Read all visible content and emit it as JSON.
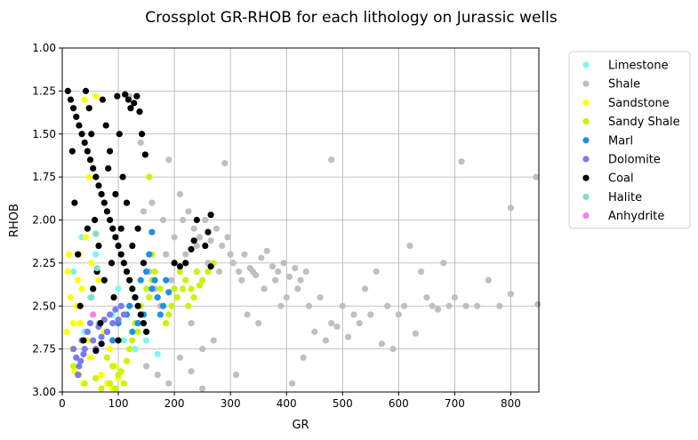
{
  "chart_data": {
    "type": "scatter",
    "title": "Crossplot GR-RHOB for each lithology on Jurassic wells",
    "xlabel": "GR",
    "ylabel": "RHOB",
    "xlim": [
      0,
      850
    ],
    "ylim": [
      3.0,
      1.0
    ],
    "y_inverted": true,
    "xticks": [
      "0",
      "100",
      "200",
      "300",
      "400",
      "500",
      "600",
      "700",
      "800"
    ],
    "yticks": [
      "1.00",
      "1.25",
      "1.50",
      "1.75",
      "2.00",
      "2.25",
      "2.50",
      "2.75",
      "3.00"
    ],
    "grid": true,
    "legend_position": "outside-right",
    "series": [
      {
        "name": "Limestone",
        "color": "#7ef5f5",
        "points": [
          [
            20,
            2.3
          ],
          [
            35,
            2.1
          ],
          [
            50,
            2.45
          ],
          [
            65,
            2.6
          ],
          [
            90,
            2.55
          ],
          [
            110,
            2.7
          ],
          [
            130,
            2.75
          ],
          [
            150,
            2.7
          ],
          [
            170,
            2.78
          ],
          [
            60,
            2.2
          ],
          [
            40,
            2.65
          ],
          [
            100,
            2.4
          ]
        ]
      },
      {
        "name": "Shale",
        "color": "#bfbfbf",
        "points": [
          [
            160,
            1.9
          ],
          [
            180,
            2.0
          ],
          [
            200,
            2.1
          ],
          [
            220,
            2.2
          ],
          [
            240,
            2.15
          ],
          [
            260,
            2.25
          ],
          [
            280,
            2.3
          ],
          [
            300,
            2.2
          ],
          [
            320,
            2.35
          ],
          [
            340,
            2.3
          ],
          [
            360,
            2.4
          ],
          [
            380,
            2.35
          ],
          [
            400,
            2.45
          ],
          [
            420,
            2.4
          ],
          [
            440,
            2.5
          ],
          [
            460,
            2.45
          ],
          [
            480,
            2.6
          ],
          [
            500,
            2.5
          ],
          [
            520,
            2.55
          ],
          [
            540,
            2.4
          ],
          [
            560,
            2.3
          ],
          [
            580,
            2.5
          ],
          [
            600,
            2.55
          ],
          [
            620,
            2.15
          ],
          [
            640,
            2.3
          ],
          [
            660,
            2.5
          ],
          [
            680,
            2.25
          ],
          [
            700,
            2.45
          ],
          [
            720,
            2.5
          ],
          [
            740,
            2.5
          ],
          [
            760,
            2.35
          ],
          [
            780,
            2.5
          ],
          [
            800,
            1.93
          ],
          [
            800,
            2.43
          ],
          [
            845,
            1.75
          ],
          [
            848,
            2.49
          ],
          [
            712,
            1.66
          ],
          [
            480,
            1.65
          ],
          [
            290,
            1.67
          ],
          [
            190,
            1.65
          ],
          [
            210,
            1.85
          ],
          [
            230,
            2.6
          ],
          [
            250,
            2.75
          ],
          [
            270,
            2.7
          ],
          [
            310,
            2.9
          ],
          [
            330,
            2.55
          ],
          [
            350,
            2.6
          ],
          [
            390,
            2.5
          ],
          [
            410,
            2.95
          ],
          [
            430,
            2.8
          ],
          [
            450,
            2.65
          ],
          [
            470,
            2.7
          ],
          [
            490,
            2.62
          ],
          [
            510,
            2.68
          ],
          [
            530,
            2.6
          ],
          [
            550,
            2.55
          ],
          [
            570,
            2.72
          ],
          [
            590,
            2.75
          ],
          [
            610,
            2.5
          ],
          [
            630,
            2.66
          ],
          [
            650,
            2.45
          ],
          [
            670,
            2.52
          ],
          [
            690,
            2.5
          ],
          [
            150,
            2.85
          ],
          [
            170,
            2.9
          ],
          [
            190,
            2.95
          ],
          [
            210,
            2.8
          ],
          [
            230,
            2.88
          ],
          [
            250,
            2.98
          ],
          [
            120,
            1.28
          ],
          [
            140,
            1.55
          ],
          [
            145,
            1.95
          ],
          [
            155,
            2.3
          ],
          [
            165,
            2.4
          ],
          [
            175,
            2.5
          ],
          [
            185,
            2.2
          ],
          [
            195,
            2.35
          ],
          [
            205,
            2.45
          ],
          [
            215,
            2.0
          ],
          [
            225,
            1.95
          ],
          [
            235,
            2.05
          ],
          [
            245,
            2.1
          ],
          [
            255,
            2.0
          ],
          [
            265,
            2.12
          ],
          [
            275,
            2.05
          ],
          [
            285,
            2.15
          ],
          [
            295,
            2.1
          ],
          [
            305,
            2.25
          ],
          [
            315,
            2.3
          ],
          [
            325,
            2.2
          ],
          [
            335,
            2.28
          ],
          [
            345,
            2.32
          ],
          [
            355,
            2.22
          ],
          [
            365,
            2.18
          ],
          [
            375,
            2.27
          ],
          [
            385,
            2.3
          ],
          [
            395,
            2.25
          ],
          [
            405,
            2.33
          ],
          [
            415,
            2.28
          ],
          [
            425,
            2.35
          ],
          [
            435,
            2.3
          ]
        ]
      },
      {
        "name": "Sandstone",
        "color": "#ffff00",
        "points": [
          [
            10,
            2.3
          ],
          [
            15,
            2.45
          ],
          [
            20,
            2.6
          ],
          [
            25,
            2.5
          ],
          [
            30,
            2.2
          ],
          [
            35,
            2.4
          ],
          [
            40,
            1.3
          ],
          [
            45,
            2.7
          ],
          [
            50,
            2.8
          ],
          [
            55,
            2.55
          ],
          [
            60,
            1.28
          ],
          [
            65,
            2.35
          ],
          [
            70,
            2.9
          ],
          [
            75,
            2.65
          ],
          [
            80,
            2.95
          ],
          [
            85,
            2.75
          ],
          [
            90,
            2.98
          ],
          [
            95,
            2.85
          ],
          [
            100,
            2.92
          ],
          [
            8,
            2.65
          ],
          [
            12,
            2.2
          ],
          [
            18,
            2.75
          ],
          [
            22,
            2.88
          ],
          [
            28,
            2.35
          ],
          [
            32,
            2.6
          ],
          [
            38,
            2.95
          ],
          [
            42,
            2.1
          ],
          [
            48,
            1.75
          ],
          [
            52,
            2.25
          ]
        ]
      },
      {
        "name": "Sandy Shale",
        "color": "#c8f500",
        "points": [
          [
            80,
            2.8
          ],
          [
            90,
            2.85
          ],
          [
            100,
            2.9
          ],
          [
            110,
            2.95
          ],
          [
            120,
            2.75
          ],
          [
            130,
            2.6
          ],
          [
            140,
            2.5
          ],
          [
            150,
            2.4
          ],
          [
            160,
            2.35
          ],
          [
            170,
            2.45
          ],
          [
            180,
            2.5
          ],
          [
            190,
            2.55
          ],
          [
            200,
            2.4
          ],
          [
            210,
            2.3
          ],
          [
            220,
            2.35
          ],
          [
            230,
            2.4
          ],
          [
            240,
            2.3
          ],
          [
            250,
            2.35
          ],
          [
            260,
            2.3
          ],
          [
            270,
            2.25
          ],
          [
            85,
            2.95
          ],
          [
            95,
            2.98
          ],
          [
            105,
            2.88
          ],
          [
            115,
            2.82
          ],
          [
            125,
            2.7
          ],
          [
            135,
            2.65
          ],
          [
            145,
            2.55
          ],
          [
            155,
            2.45
          ],
          [
            165,
            2.3
          ],
          [
            175,
            2.4
          ],
          [
            185,
            2.6
          ],
          [
            195,
            2.5
          ],
          [
            205,
            2.45
          ],
          [
            215,
            2.4
          ],
          [
            225,
            2.5
          ],
          [
            235,
            2.45
          ],
          [
            245,
            2.38
          ],
          [
            155,
            1.75
          ],
          [
            160,
            2.2
          ],
          [
            20,
            2.85
          ],
          [
            30,
            2.9
          ],
          [
            40,
            2.95
          ],
          [
            60,
            2.92
          ],
          [
            70,
            2.98
          ]
        ]
      },
      {
        "name": "Marl",
        "color": "#1e90e6",
        "points": [
          [
            120,
            2.5
          ],
          [
            130,
            2.45
          ],
          [
            140,
            2.35
          ],
          [
            150,
            2.3
          ],
          [
            160,
            2.4
          ],
          [
            170,
            2.45
          ],
          [
            180,
            2.5
          ],
          [
            190,
            2.42
          ],
          [
            145,
            2.55
          ],
          [
            155,
            2.2
          ],
          [
            135,
            2.6
          ],
          [
            125,
            2.65
          ],
          [
            115,
            2.55
          ],
          [
            160,
            2.07
          ],
          [
            165,
            2.35
          ],
          [
            100,
            2.6
          ],
          [
            90,
            2.7
          ],
          [
            80,
            2.65
          ],
          [
            175,
            2.55
          ],
          [
            185,
            2.35
          ]
        ]
      },
      {
        "name": "Dolomite",
        "color": "#7b7bf0",
        "points": [
          [
            20,
            2.75
          ],
          [
            25,
            2.8
          ],
          [
            30,
            2.85
          ],
          [
            35,
            2.7
          ],
          [
            40,
            2.75
          ],
          [
            45,
            2.65
          ],
          [
            50,
            2.6
          ],
          [
            55,
            2.7
          ],
          [
            60,
            2.75
          ],
          [
            65,
            2.62
          ],
          [
            70,
            2.68
          ],
          [
            75,
            2.58
          ],
          [
            80,
            2.65
          ],
          [
            85,
            2.55
          ],
          [
            90,
            2.6
          ],
          [
            95,
            2.52
          ],
          [
            100,
            2.58
          ],
          [
            105,
            2.5
          ],
          [
            110,
            2.55
          ],
          [
            28,
            2.9
          ],
          [
            33,
            2.82
          ],
          [
            38,
            2.78
          ]
        ]
      },
      {
        "name": "Coal",
        "color": "#000000",
        "points": [
          [
            10,
            1.25
          ],
          [
            15,
            1.3
          ],
          [
            20,
            1.35
          ],
          [
            25,
            1.4
          ],
          [
            30,
            1.45
          ],
          [
            35,
            1.5
          ],
          [
            40,
            1.55
          ],
          [
            45,
            1.6
          ],
          [
            50,
            1.65
          ],
          [
            55,
            1.7
          ],
          [
            60,
            1.75
          ],
          [
            65,
            1.8
          ],
          [
            70,
            1.85
          ],
          [
            75,
            1.9
          ],
          [
            80,
            1.95
          ],
          [
            85,
            2.0
          ],
          [
            90,
            2.05
          ],
          [
            95,
            2.1
          ],
          [
            100,
            2.15
          ],
          [
            105,
            2.2
          ],
          [
            110,
            2.25
          ],
          [
            115,
            2.3
          ],
          [
            120,
            2.35
          ],
          [
            125,
            2.4
          ],
          [
            130,
            2.45
          ],
          [
            135,
            2.5
          ],
          [
            140,
            2.55
          ],
          [
            145,
            2.6
          ],
          [
            150,
            2.65
          ],
          [
            18,
            1.6
          ],
          [
            22,
            1.9
          ],
          [
            28,
            2.2
          ],
          [
            32,
            2.5
          ],
          [
            38,
            2.7
          ],
          [
            42,
            1.25
          ],
          [
            48,
            1.35
          ],
          [
            52,
            1.5
          ],
          [
            58,
            2.0
          ],
          [
            62,
            2.3
          ],
          [
            68,
            2.6
          ],
          [
            72,
            1.3
          ],
          [
            78,
            1.45
          ],
          [
            82,
            1.7
          ],
          [
            88,
            2.25
          ],
          [
            92,
            2.45
          ],
          [
            98,
            1.28
          ],
          [
            102,
            1.5
          ],
          [
            108,
            1.75
          ],
          [
            112,
            1.27
          ],
          [
            118,
            1.3
          ],
          [
            122,
            1.35
          ],
          [
            128,
            1.32
          ],
          [
            133,
            1.28
          ],
          [
            138,
            1.37
          ],
          [
            142,
            1.5
          ],
          [
            148,
            1.62
          ],
          [
            60,
            2.76
          ],
          [
            70,
            2.72
          ],
          [
            100,
            2.7
          ],
          [
            240,
            2.0
          ],
          [
            265,
            1.97
          ],
          [
            260,
            2.07
          ],
          [
            235,
            2.12
          ],
          [
            230,
            2.17
          ],
          [
            255,
            2.15
          ],
          [
            210,
            2.27
          ],
          [
            220,
            2.25
          ],
          [
            200,
            2.25
          ],
          [
            265,
            2.27
          ],
          [
            45,
            2.05
          ],
          [
            55,
            2.4
          ],
          [
            65,
            2.15
          ],
          [
            75,
            2.35
          ],
          [
            85,
            1.6
          ],
          [
            95,
            1.85
          ],
          [
            105,
            2.05
          ],
          [
            115,
            1.9
          ],
          [
            125,
            2.15
          ],
          [
            135,
            2.05
          ],
          [
            145,
            2.25
          ]
        ]
      },
      {
        "name": "Halite",
        "color": "#7fdfc0",
        "points": [
          [
            60,
            2.08
          ],
          [
            62,
            2.28
          ],
          [
            52,
            2.45
          ]
        ]
      },
      {
        "name": "Anhydrite",
        "color": "#ee82ee",
        "points": [
          [
            55,
            2.55
          ]
        ]
      }
    ]
  }
}
